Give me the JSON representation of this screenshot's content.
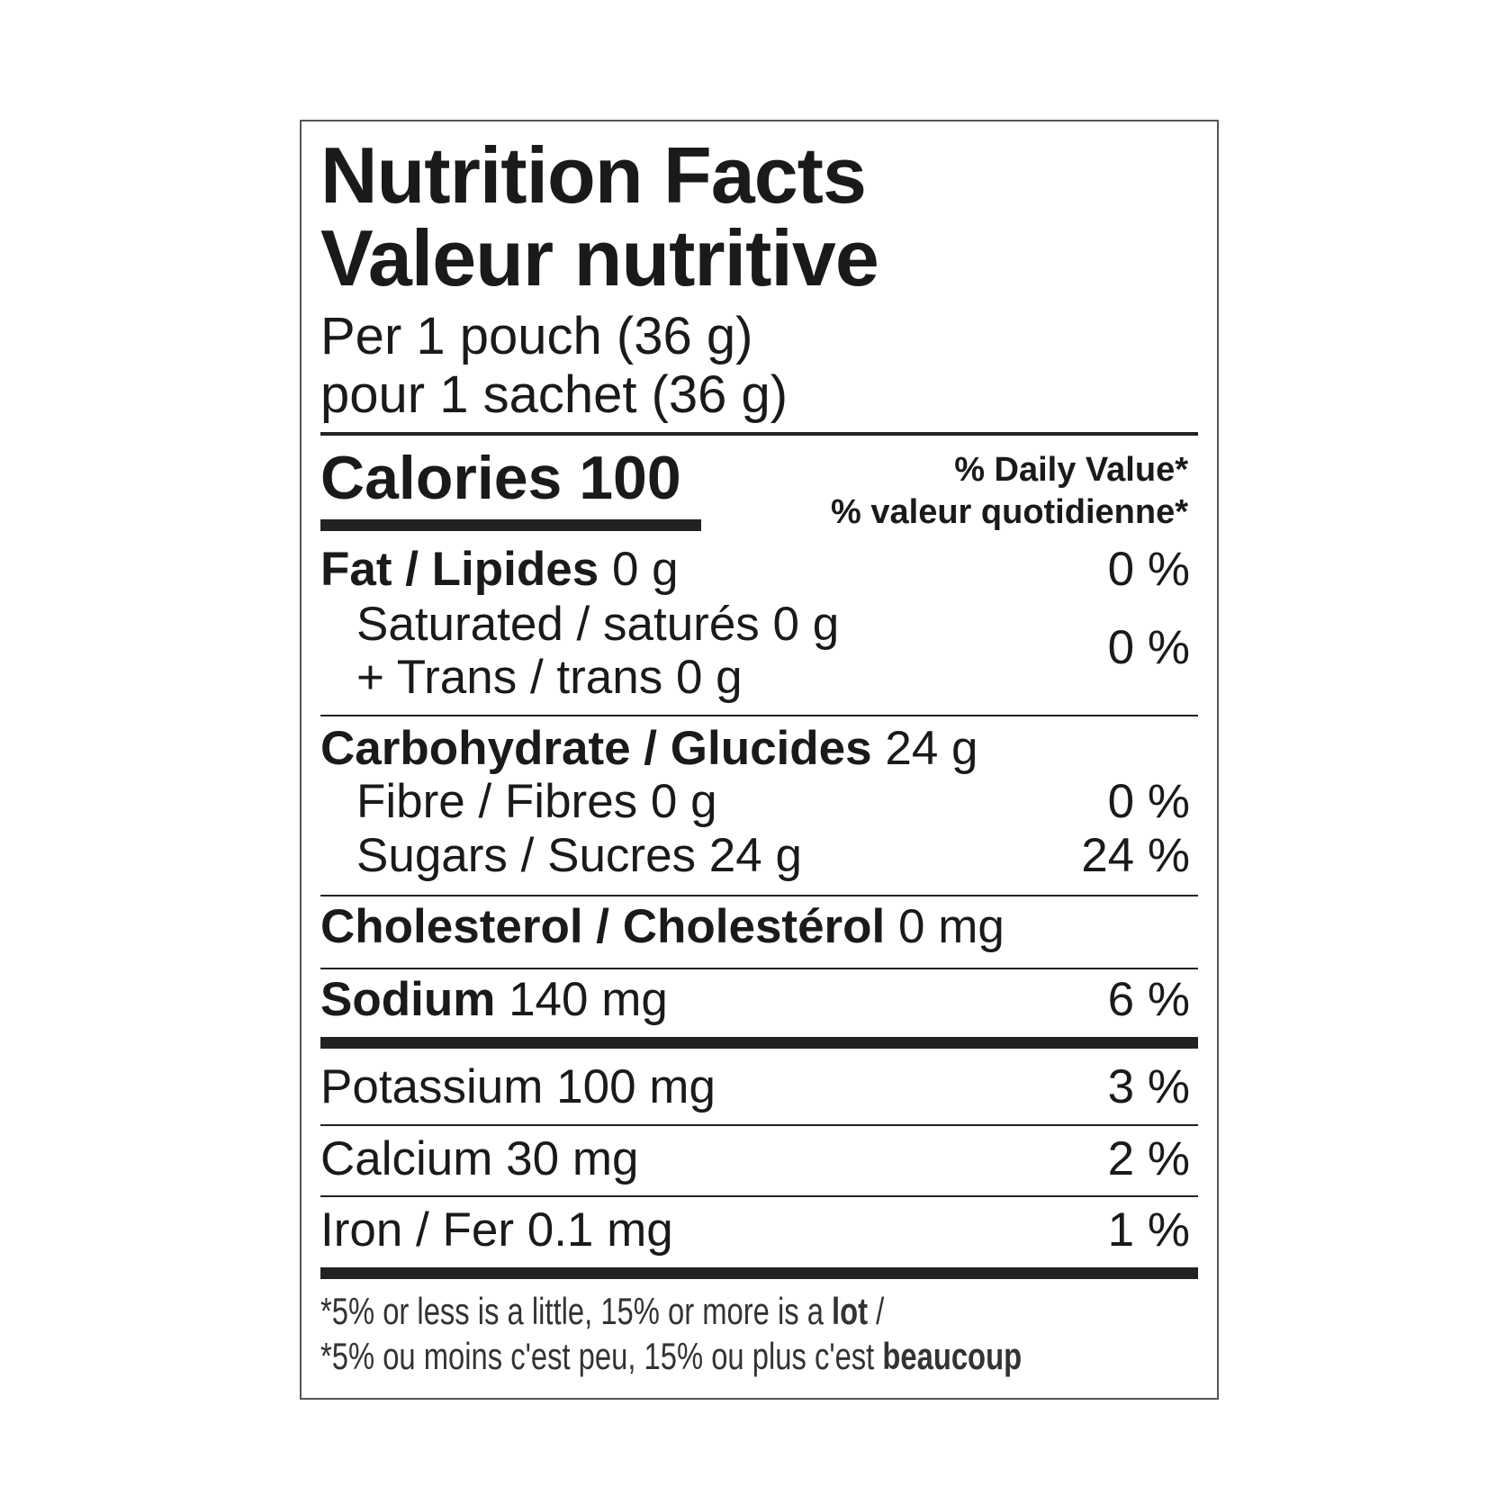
{
  "title_en": "Nutrition Facts",
  "title_fr": "Valeur nutritive",
  "serving_en": "Per 1 pouch (36 g)",
  "serving_fr": "pour 1 sachet (36 g)",
  "calories": "Calories 100",
  "dv_en": "% Daily Value*",
  "dv_fr": "% valeur quotidienne*",
  "rows": {
    "fat": {
      "label": "Fat / Lipides",
      "amount": "0 g",
      "dv": "0 %"
    },
    "saturated": {
      "label": "Saturated / saturés 0 g"
    },
    "trans": {
      "label": "+ Trans / trans 0 g",
      "dv": "0 %"
    },
    "carb": {
      "label": "Carbohydrate / Glucides",
      "amount": "24 g"
    },
    "fibre": {
      "label": "Fibre / Fibres 0 g",
      "dv": "0 %"
    },
    "sugars": {
      "label": "Sugars / Sucres 24 g",
      "dv": "24 %"
    },
    "cholesterol": {
      "label": "Cholesterol / Cholestérol",
      "amount": "0 mg"
    },
    "sodium": {
      "label": "Sodium",
      "amount": "140 mg",
      "dv": "6 %"
    },
    "potassium": {
      "label": "Potassium 100 mg",
      "dv": "3 %"
    },
    "calcium": {
      "label": "Calcium 30 mg",
      "dv": "2 %"
    },
    "iron": {
      "label": "Iron / Fer 0.1 mg",
      "dv": "1 %"
    }
  },
  "footnote": {
    "en_prefix": "*5% or less is a little, 15% or more is a ",
    "en_bold": "lot",
    "en_suffix": " /",
    "fr_prefix": "*5% ou moins c'est peu, 15% ou plus c'est ",
    "fr_bold": "beaucoup"
  }
}
